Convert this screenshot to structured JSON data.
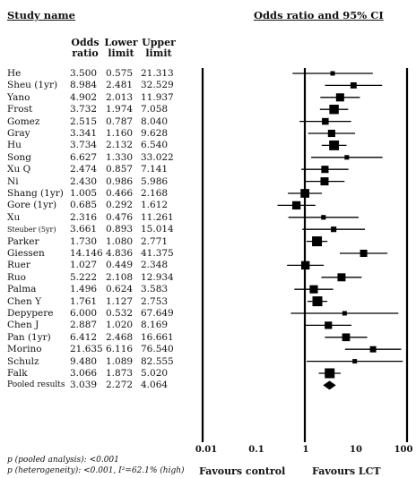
{
  "header": {
    "study_name": "Study name",
    "plot_title": "Odds ratio and 95% CI",
    "col_or": [
      "Odds",
      "ratio"
    ],
    "col_lower": [
      "Lower",
      "limit"
    ],
    "col_upper": [
      "Upper",
      "limit"
    ]
  },
  "rows": [
    {
      "name": "He",
      "or": "3.500",
      "lower": "0.575",
      "upper": "21.313"
    },
    {
      "name": "Sheu (1yr)",
      "or": "8.984",
      "lower": "2.481",
      "upper": "32.529"
    },
    {
      "name": "Yano",
      "or": "4.902",
      "lower": "2.013",
      "upper": "11.937"
    },
    {
      "name": "Frost",
      "or": "3.732",
      "lower": "1.974",
      "upper": "7.058"
    },
    {
      "name": "Gomez",
      "or": "2.515",
      "lower": "0.787",
      "upper": "8.040"
    },
    {
      "name": "Gray",
      "or": "3.341",
      "lower": "1.160",
      "upper": "9.628"
    },
    {
      "name": "Hu",
      "or": "3.734",
      "lower": "2.132",
      "upper": "6.540"
    },
    {
      "name": "Song",
      "or": "6.627",
      "lower": "1.330",
      "upper": "33.022"
    },
    {
      "name": "Xu Q",
      "or": "2.474",
      "lower": "0.857",
      "upper": "7.141"
    },
    {
      "name": "Ni",
      "or": "2.430",
      "lower": "0.986",
      "upper": "5.986"
    },
    {
      "name": "Shang (1yr)",
      "or": "1.005",
      "lower": "0.466",
      "upper": "2.168"
    },
    {
      "name": "Gore (1yr)",
      "or": "0.685",
      "lower": "0.292",
      "upper": "1.612"
    },
    {
      "name": "Xu",
      "or": "2.316",
      "lower": "0.476",
      "upper": "11.261"
    },
    {
      "name": "Steuber (5yr)",
      "or": "3.661",
      "lower": "0.893",
      "upper": "15.014"
    },
    {
      "name": "Parker",
      "or": "1.730",
      "lower": "1.080",
      "upper": "2.771"
    },
    {
      "name": "Giessen",
      "or": "14.146",
      "lower": "4.836",
      "upper": "41.375"
    },
    {
      "name": "Ruer",
      "or": "1.027",
      "lower": "0.449",
      "upper": "2.348"
    },
    {
      "name": "Ruo",
      "or": "5.222",
      "lower": "2.108",
      "upper": "12.934"
    },
    {
      "name": "Palma",
      "or": "1.496",
      "lower": "0.624",
      "upper": "3.583"
    },
    {
      "name": "Chen Y",
      "or": "1.761",
      "lower": "1.127",
      "upper": "2.753"
    },
    {
      "name": "Depypere",
      "or": "6.000",
      "lower": "0.532",
      "upper": "67.649"
    },
    {
      "name": "Chen J",
      "or": "2.887",
      "lower": "1.020",
      "upper": "8.169"
    },
    {
      "name": "Pan (1yr)",
      "or": "6.412",
      "lower": "2.468",
      "upper": "16.661"
    },
    {
      "name": "Morino",
      "or": "21.635",
      "lower": "6.116",
      "upper": "76.540"
    },
    {
      "name": "Schulz",
      "or": "9.480",
      "lower": "1.089",
      "upper": "82.555"
    },
    {
      "name": "Falk",
      "or": "3.066",
      "lower": "1.873",
      "upper": "5.020"
    },
    {
      "name": "Pooled results",
      "or": "3.039",
      "lower": "2.272",
      "upper": "4.064"
    }
  ],
  "axis": {
    "ticks": [
      "0.01",
      "0.1",
      "1",
      "10",
      "100"
    ],
    "favours_left": "Favours control",
    "favours_right": "Favours LCT"
  },
  "footnotes": {
    "pooled": "p (pooled analysis): <0.001",
    "heterogeneity": "p (heterogeneity): <0.001, I²=62.1% (high)"
  },
  "chart_data": {
    "type": "forest",
    "x_scale": "log",
    "xlim": [
      0.01,
      100
    ],
    "reference_line": 1,
    "series": [
      {
        "name": "He",
        "or": 3.5,
        "lower": 0.575,
        "upper": 21.313
      },
      {
        "name": "Sheu (1yr)",
        "or": 8.984,
        "lower": 2.481,
        "upper": 32.529
      },
      {
        "name": "Yano",
        "or": 4.902,
        "lower": 2.013,
        "upper": 11.937
      },
      {
        "name": "Frost",
        "or": 3.732,
        "lower": 1.974,
        "upper": 7.058
      },
      {
        "name": "Gomez",
        "or": 2.515,
        "lower": 0.787,
        "upper": 8.04
      },
      {
        "name": "Gray",
        "or": 3.341,
        "lower": 1.16,
        "upper": 9.628
      },
      {
        "name": "Hu",
        "or": 3.734,
        "lower": 2.132,
        "upper": 6.54
      },
      {
        "name": "Song",
        "or": 6.627,
        "lower": 1.33,
        "upper": 33.022
      },
      {
        "name": "Xu Q",
        "or": 2.474,
        "lower": 0.857,
        "upper": 7.141
      },
      {
        "name": "Ni",
        "or": 2.43,
        "lower": 0.986,
        "upper": 5.986
      },
      {
        "name": "Shang (1yr)",
        "or": 1.005,
        "lower": 0.466,
        "upper": 2.168
      },
      {
        "name": "Gore (1yr)",
        "or": 0.685,
        "lower": 0.292,
        "upper": 1.612
      },
      {
        "name": "Xu",
        "or": 2.316,
        "lower": 0.476,
        "upper": 11.261
      },
      {
        "name": "Steuber (5yr)",
        "or": 3.661,
        "lower": 0.893,
        "upper": 15.014
      },
      {
        "name": "Parker",
        "or": 1.73,
        "lower": 1.08,
        "upper": 2.771
      },
      {
        "name": "Giessen",
        "or": 14.146,
        "lower": 4.836,
        "upper": 41.375
      },
      {
        "name": "Ruer",
        "or": 1.027,
        "lower": 0.449,
        "upper": 2.348
      },
      {
        "name": "Ruo",
        "or": 5.222,
        "lower": 2.108,
        "upper": 12.934
      },
      {
        "name": "Palma",
        "or": 1.496,
        "lower": 0.624,
        "upper": 3.583
      },
      {
        "name": "Chen Y",
        "or": 1.761,
        "lower": 1.127,
        "upper": 2.753
      },
      {
        "name": "Depypere",
        "or": 6.0,
        "lower": 0.532,
        "upper": 67.649
      },
      {
        "name": "Chen J",
        "or": 2.887,
        "lower": 1.02,
        "upper": 8.169
      },
      {
        "name": "Pan (1yr)",
        "or": 6.412,
        "lower": 2.468,
        "upper": 16.661
      },
      {
        "name": "Morino",
        "or": 21.635,
        "lower": 6.116,
        "upper": 76.54
      },
      {
        "name": "Schulz",
        "or": 9.48,
        "lower": 1.089,
        "upper": 82.555
      },
      {
        "name": "Falk",
        "or": 3.066,
        "lower": 1.873,
        "upper": 5.02
      }
    ],
    "pooled": {
      "name": "Pooled results",
      "or": 3.039,
      "lower": 2.272,
      "upper": 4.064
    }
  }
}
